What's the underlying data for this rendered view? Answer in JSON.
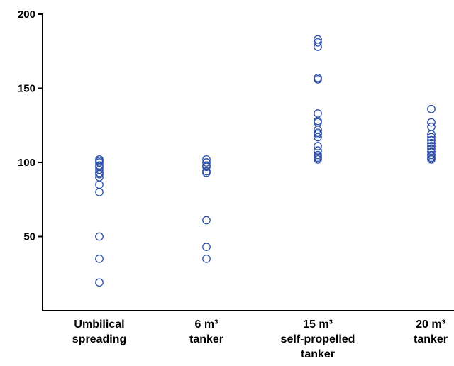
{
  "chart_data": {
    "type": "scatter",
    "title": "",
    "xlabel": "",
    "ylabel": "",
    "ylim": [
      0,
      200
    ],
    "yticks": [
      "50",
      "100",
      "150",
      "200"
    ],
    "grid": false,
    "marker_color": "#2B4FA8",
    "categories": [
      {
        "lines": [
          "Umbilical",
          "spreading"
        ]
      },
      {
        "lines": [
          "6 m³",
          "tanker"
        ]
      },
      {
        "lines": [
          "15 m³",
          "self-propelled",
          "tanker"
        ]
      },
      {
        "lines": [
          "20 m³",
          "tanker"
        ]
      }
    ],
    "series": [
      {
        "category_index": 0,
        "values": [
          102,
          101,
          100,
          98,
          97,
          95,
          93,
          92,
          90,
          85,
          80,
          50,
          35,
          19
        ]
      },
      {
        "category_index": 1,
        "values": [
          102,
          100,
          98,
          97,
          94,
          93,
          61,
          43,
          35
        ]
      },
      {
        "category_index": 2,
        "values": [
          183,
          181,
          178,
          157,
          156,
          133,
          128,
          127,
          122,
          120,
          119,
          117,
          111,
          108,
          105,
          104,
          103,
          102
        ]
      },
      {
        "category_index": 3,
        "values": [
          136,
          127,
          124,
          119,
          117,
          115,
          113,
          111,
          109,
          107,
          105,
          104,
          103,
          102
        ]
      }
    ]
  }
}
